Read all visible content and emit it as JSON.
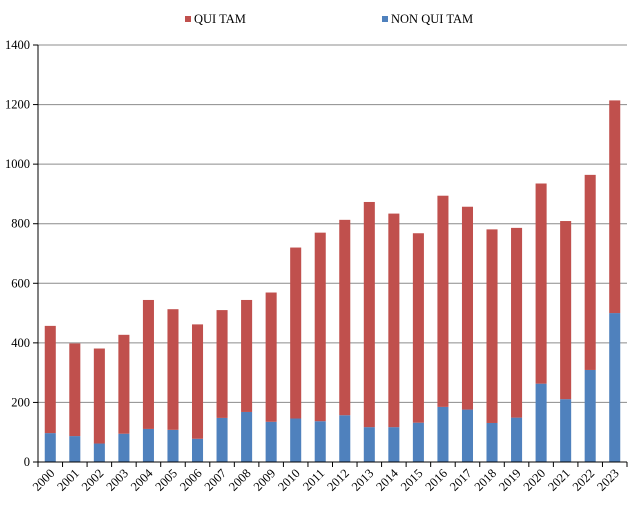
{
  "chart_data": {
    "type": "bar",
    "stacked": true,
    "title": "",
    "xlabel": "",
    "ylabel": "",
    "ylim": [
      0,
      1400
    ],
    "yticks": [
      0,
      200,
      400,
      600,
      800,
      1000,
      1200,
      1400
    ],
    "grid": true,
    "legend_position": "top-center",
    "categories": [
      "2000",
      "2001",
      "2002",
      "2003",
      "2004",
      "2005",
      "2006",
      "2007",
      "2008",
      "2009",
      "2010",
      "2011",
      "2012",
      "2013",
      "2014",
      "2015",
      "2016",
      "2017",
      "2018",
      "2019",
      "2020",
      "2021",
      "2022",
      "2023"
    ],
    "series": [
      {
        "name": "NON QUI TAM",
        "color": "#4f81bd",
        "values": [
          97,
          87,
          62,
          95,
          111,
          108,
          78,
          148,
          168,
          135,
          146,
          137,
          157,
          117,
          117,
          132,
          185,
          176,
          131,
          149,
          263,
          211,
          309,
          500
        ]
      },
      {
        "name": "QUI TAM",
        "color": "#c0504d",
        "values": [
          360,
          311,
          319,
          332,
          433,
          405,
          384,
          362,
          376,
          434,
          574,
          633,
          656,
          756,
          717,
          636,
          709,
          681,
          650,
          637,
          672,
          598,
          655,
          714
        ]
      }
    ],
    "legend_order": [
      "QUI TAM",
      "NON QUI TAM"
    ]
  }
}
